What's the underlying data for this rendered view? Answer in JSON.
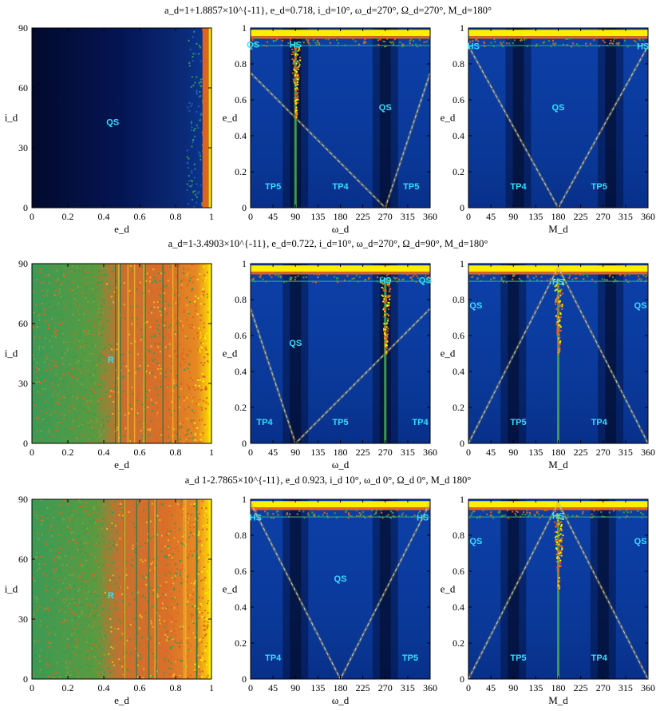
{
  "figure": {
    "rows": [
      {
        "title": "a_d=1+1.8857×10^{-11}, e_d=0.718, i_d=10°, ω_d=270°, Ω_d=270°, M_d=180°"
      },
      {
        "title": "a_d=1-3.4903×10^{-11}, e_d=0.722, i_d=10°, ω_d=270°, Ω_d=90°, M_d=180°"
      },
      {
        "title": "a_d 1-2.7865×10^{-11}, e_d 0.923, i_d 10°, ω_d 0°, Ω_d 0°, M_d 180°"
      }
    ]
  },
  "chart_data": [
    {
      "type": "heatmap",
      "row": 0,
      "col": 0,
      "xlabel": "e_d",
      "ylabel": "i_d",
      "xlim": [
        0,
        1
      ],
      "ylim": [
        0,
        90
      ],
      "xticks": [
        "0",
        "0.2",
        "0.4",
        "0.6",
        "0.8",
        "1"
      ],
      "yticks": [
        "0",
        "30",
        "60",
        "90"
      ],
      "labels": [
        {
          "text": "QS",
          "x": 0.45,
          "y": 43
        }
      ],
      "background": "qs-dark",
      "bright_edge_e": 0.9
    },
    {
      "type": "heatmap",
      "row": 0,
      "col": 1,
      "xlabel": "ω_d",
      "ylabel": "e_d",
      "xlim": [
        0,
        360
      ],
      "ylim": [
        0,
        1
      ],
      "xticks": [
        "0",
        "45",
        "90",
        "135",
        "180",
        "225",
        "270",
        "315",
        "360"
      ],
      "yticks": [
        "0",
        "0.2",
        "0.4",
        "0.6",
        "0.8",
        "1"
      ],
      "labels": [
        {
          "text": "QS",
          "x": 5,
          "y": 0.91
        },
        {
          "text": "HS",
          "x": 90,
          "y": 0.91
        },
        {
          "text": "QS",
          "x": 270,
          "y": 0.56
        },
        {
          "text": "TP5",
          "x": 45,
          "y": 0.12
        },
        {
          "text": "TP4",
          "x": 180,
          "y": 0.12
        },
        {
          "text": "TP5",
          "x": 322,
          "y": 0.12
        }
      ],
      "v_center": 270,
      "spike": 90,
      "dark_bands": [
        90,
        270
      ],
      "dashed_v": {
        "x": [
          0,
          270,
          360
        ],
        "y": [
          0.75,
          0,
          0.75
        ]
      }
    },
    {
      "type": "heatmap",
      "row": 0,
      "col": 2,
      "xlabel": "M_d",
      "ylabel": "e_d",
      "xlim": [
        0,
        360
      ],
      "ylim": [
        0,
        1
      ],
      "xticks": [
        "0",
        "45",
        "90",
        "135",
        "180",
        "225",
        "270",
        "315",
        "360"
      ],
      "yticks": [
        "0",
        "0.2",
        "0.4",
        "0.6",
        "0.8",
        "1"
      ],
      "labels": [
        {
          "text": "HS",
          "x": 10,
          "y": 0.9
        },
        {
          "text": "QS",
          "x": 180,
          "y": 0.56
        },
        {
          "text": "HS",
          "x": 350,
          "y": 0.9
        },
        {
          "text": "TP4",
          "x": 100,
          "y": 0.12
        },
        {
          "text": "TP5",
          "x": 262,
          "y": 0.12
        }
      ],
      "v_center": 180,
      "spike": null,
      "dark_bands": [
        100,
        285
      ],
      "dashed_v": {
        "x": [
          0,
          180,
          360
        ],
        "y": [
          0.9,
          0,
          0.9
        ]
      }
    },
    {
      "type": "heatmap",
      "row": 1,
      "col": 0,
      "xlabel": "e_d",
      "ylabel": "i_d",
      "xlim": [
        0,
        1
      ],
      "ylim": [
        0,
        90
      ],
      "xticks": [
        "0",
        "0.2",
        "0.4",
        "0.6",
        "0.8",
        "1"
      ],
      "yticks": [
        "0",
        "30",
        "60",
        "90"
      ],
      "labels": [
        {
          "text": "R",
          "x": 0.44,
          "y": 42
        }
      ],
      "background": "chaotic"
    },
    {
      "type": "heatmap",
      "row": 1,
      "col": 1,
      "xlabel": "ω_d",
      "ylabel": "e_d",
      "xlim": [
        0,
        360
      ],
      "ylim": [
        0,
        1
      ],
      "xticks": [
        "0",
        "45",
        "90",
        "135",
        "180",
        "225",
        "270",
        "315",
        "360"
      ],
      "yticks": [
        "0",
        "0.2",
        "0.4",
        "0.6",
        "0.8",
        "1"
      ],
      "labels": [
        {
          "text": "HS",
          "x": 270,
          "y": 0.91
        },
        {
          "text": "QS",
          "x": 350,
          "y": 0.91
        },
        {
          "text": "QS",
          "x": 90,
          "y": 0.56
        },
        {
          "text": "TP4",
          "x": 28,
          "y": 0.12
        },
        {
          "text": "TP5",
          "x": 180,
          "y": 0.12
        },
        {
          "text": "TP4",
          "x": 340,
          "y": 0.12
        }
      ],
      "v_center": 90,
      "spike": 270,
      "dark_bands": [
        90,
        270
      ],
      "dashed_v": {
        "x": [
          0,
          90,
          360
        ],
        "y": [
          0.75,
          0,
          0.75
        ]
      }
    },
    {
      "type": "heatmap",
      "row": 1,
      "col": 2,
      "xlabel": "M_d",
      "ylabel": "e_d",
      "xlim": [
        0,
        360
      ],
      "ylim": [
        0,
        1
      ],
      "xticks": [
        "0",
        "45",
        "90",
        "135",
        "180",
        "225",
        "270",
        "315",
        "360"
      ],
      "yticks": [
        "0",
        "0.2",
        "0.4",
        "0.6",
        "0.8",
        "1"
      ],
      "labels": [
        {
          "text": "QS",
          "x": 15,
          "y": 0.77
        },
        {
          "text": "HS",
          "x": 180,
          "y": 0.9
        },
        {
          "text": "QS",
          "x": 345,
          "y": 0.77
        },
        {
          "text": "TP5",
          "x": 100,
          "y": 0.12
        },
        {
          "text": "TP4",
          "x": 262,
          "y": 0.12
        }
      ],
      "lambda_center": 180,
      "spike": 180,
      "dark_bands": [
        90,
        285
      ],
      "dashed_l": {
        "x": [
          0,
          180,
          360
        ],
        "y": [
          0,
          0.98,
          0
        ]
      }
    },
    {
      "type": "heatmap",
      "row": 2,
      "col": 0,
      "xlabel": "e_d",
      "ylabel": "i_d",
      "xlim": [
        0,
        1
      ],
      "ylim": [
        0,
        90
      ],
      "xticks": [
        "0",
        "0.2",
        "0.4",
        "0.6",
        "0.8",
        "1"
      ],
      "yticks": [
        "0",
        "30",
        "60",
        "90"
      ],
      "labels": [
        {
          "text": "R",
          "x": 0.44,
          "y": 42
        }
      ],
      "background": "chaotic"
    },
    {
      "type": "heatmap",
      "row": 2,
      "col": 1,
      "xlabel": "ω_d",
      "ylabel": "e_d",
      "xlim": [
        0,
        360
      ],
      "ylim": [
        0,
        1
      ],
      "xticks": [
        "0",
        "45",
        "90",
        "135",
        "180",
        "225",
        "270",
        "315",
        "360"
      ],
      "yticks": [
        "0",
        "0.2",
        "0.4",
        "0.6",
        "0.8",
        "1"
      ],
      "labels": [
        {
          "text": "HS",
          "x": 10,
          "y": 0.9
        },
        {
          "text": "HS",
          "x": 345,
          "y": 0.9
        },
        {
          "text": "QS",
          "x": 180,
          "y": 0.56
        },
        {
          "text": "TP4",
          "x": 45,
          "y": 0.12
        },
        {
          "text": "TP5",
          "x": 320,
          "y": 0.12
        }
      ],
      "v_center": 180,
      "spike": null,
      "dark_bands": [
        90,
        270
      ],
      "dashed_v": {
        "x": [
          0,
          180,
          360
        ],
        "y": [
          0.98,
          0,
          0.98
        ]
      }
    },
    {
      "type": "heatmap",
      "row": 2,
      "col": 2,
      "xlabel": "M_d",
      "ylabel": "e_d",
      "xlim": [
        0,
        360
      ],
      "ylim": [
        0,
        1
      ],
      "xticks": [
        "0",
        "45",
        "90",
        "135",
        "180",
        "225",
        "270",
        "315",
        "360"
      ],
      "yticks": [
        "0",
        "0.2",
        "0.4",
        "0.6",
        "0.8",
        "1"
      ],
      "labels": [
        {
          "text": "QS",
          "x": 15,
          "y": 0.77
        },
        {
          "text": "HS",
          "x": 180,
          "y": 0.91
        },
        {
          "text": "QS",
          "x": 345,
          "y": 0.77
        },
        {
          "text": "TP5",
          "x": 100,
          "y": 0.12
        },
        {
          "text": "TP4",
          "x": 262,
          "y": 0.12
        }
      ],
      "lambda_center": 180,
      "spike": 180,
      "dark_bands": [
        90,
        270
      ],
      "dashed_l": {
        "x": [
          0,
          180,
          360
        ],
        "y": [
          0,
          0.98,
          0
        ]
      }
    }
  ],
  "colors": {
    "dark": "#040d3a",
    "blue": "#0a3c9c",
    "cyan": "#33e0ff",
    "green": "#3a9a4e",
    "orange": "#e0641e",
    "yellow": "#ffee00"
  }
}
